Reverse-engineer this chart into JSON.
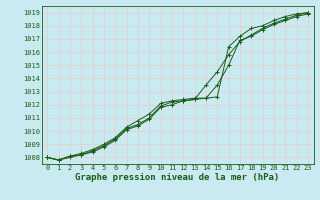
{
  "xlabel": "Graphe pression niveau de la mer (hPa)",
  "x": [
    0,
    1,
    2,
    3,
    4,
    5,
    6,
    7,
    8,
    9,
    10,
    11,
    12,
    13,
    14,
    15,
    16,
    17,
    18,
    19,
    20,
    21,
    22,
    23
  ],
  "line1": [
    1008.0,
    1007.8,
    1008.1,
    1008.3,
    1008.6,
    1009.0,
    1009.5,
    1010.3,
    1010.8,
    1011.3,
    1012.1,
    1012.3,
    1012.4,
    1012.5,
    1012.5,
    1012.6,
    1016.4,
    1017.2,
    1017.8,
    1018.0,
    1018.4,
    1018.7,
    1018.9,
    1019.0
  ],
  "line2": [
    1008.0,
    1007.8,
    1008.1,
    1008.2,
    1008.5,
    1008.9,
    1009.4,
    1010.2,
    1010.5,
    1011.0,
    1011.9,
    1012.2,
    1012.3,
    1012.4,
    1012.5,
    1013.5,
    1015.0,
    1016.9,
    1017.2,
    1017.7,
    1018.1,
    1018.4,
    1018.7,
    1018.9
  ],
  "line3": [
    1008.0,
    1007.8,
    1008.0,
    1008.2,
    1008.4,
    1008.8,
    1009.3,
    1010.1,
    1010.4,
    1010.9,
    1011.8,
    1012.0,
    1012.3,
    1012.4,
    1013.5,
    1014.5,
    1015.8,
    1016.8,
    1017.3,
    1017.8,
    1018.2,
    1018.5,
    1018.8,
    1019.0
  ],
  "line_color": "#1a5c1a",
  "bg_color": "#c8eaf0",
  "grid_color": "#f0c8c8",
  "ylim_min": 1007.5,
  "ylim_max": 1019.5,
  "yticks": [
    1008,
    1009,
    1010,
    1011,
    1012,
    1013,
    1014,
    1015,
    1016,
    1017,
    1018,
    1019
  ],
  "xticks": [
    0,
    1,
    2,
    3,
    4,
    5,
    6,
    7,
    8,
    9,
    10,
    11,
    12,
    13,
    14,
    15,
    16,
    17,
    18,
    19,
    20,
    21,
    22,
    23
  ],
  "tick_fontsize": 5.0,
  "xlabel_fontsize": 6.5,
  "marker": "+",
  "markersize": 3.5,
  "linewidth": 0.7
}
